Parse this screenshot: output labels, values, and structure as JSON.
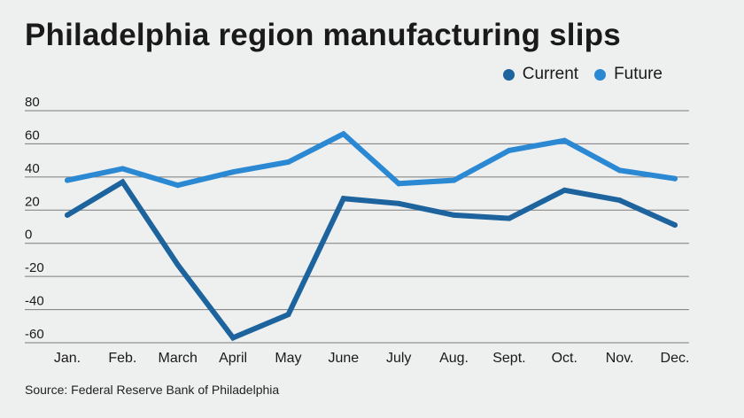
{
  "title": "Philadelphia region manufacturing slips",
  "source": "Source: Federal Reserve Bank of Philadelphia",
  "chart_data": {
    "type": "line",
    "title": "Philadelphia region manufacturing slips",
    "xlabel": "",
    "ylabel": "",
    "categories": [
      "Jan.",
      "Feb.",
      "March",
      "April",
      "May",
      "June",
      "July",
      "Aug.",
      "Sept.",
      "Oct.",
      "Nov.",
      "Dec."
    ],
    "yticks": [
      80,
      60,
      40,
      20,
      0,
      -20,
      -40,
      -60
    ],
    "ylim": [
      -60,
      80
    ],
    "grid": true,
    "legend_position": "top-right",
    "series": [
      {
        "name": "Current",
        "color": "#1d639d",
        "values": [
          17,
          37,
          -13,
          -57,
          -43,
          27,
          24,
          17,
          15,
          32,
          26,
          11
        ]
      },
      {
        "name": "Future",
        "color": "#2b88d3",
        "values": [
          38,
          45,
          35,
          43,
          49,
          66,
          36,
          38,
          56,
          62,
          44,
          39
        ]
      }
    ]
  }
}
